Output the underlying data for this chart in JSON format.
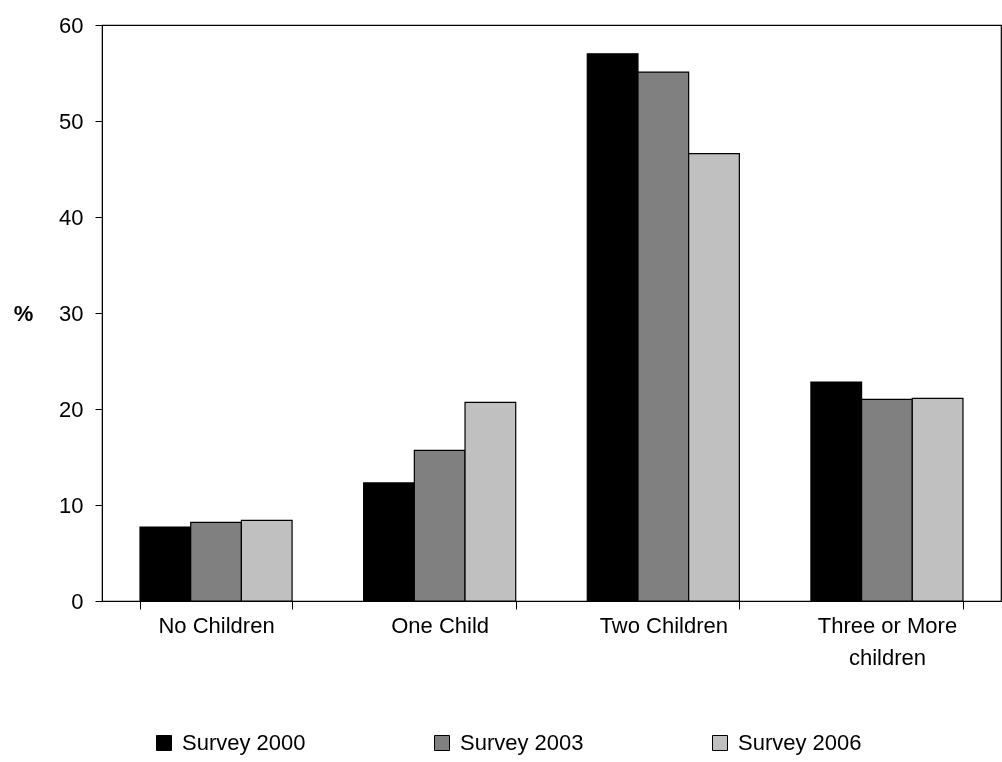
{
  "chart_data": {
    "type": "bar",
    "ylabel": "%",
    "categories": [
      "No Children",
      "One Child",
      "Two Children",
      "Three or More children"
    ],
    "series": [
      {
        "name": "Survey 2000",
        "color": "#000000",
        "values": [
          7.7,
          12.3,
          57.0,
          22.8
        ]
      },
      {
        "name": "Survey 2003",
        "color": "#808080",
        "values": [
          8.2,
          15.7,
          55.1,
          21.0
        ]
      },
      {
        "name": "Survey 2006",
        "color": "#c0c0c0",
        "values": [
          8.4,
          20.7,
          46.6,
          21.1
        ]
      }
    ],
    "ylim": [
      0,
      60
    ],
    "yticks": [
      0,
      10,
      20,
      30,
      40,
      50,
      60
    ],
    "grid": false,
    "legend": "bottom"
  }
}
